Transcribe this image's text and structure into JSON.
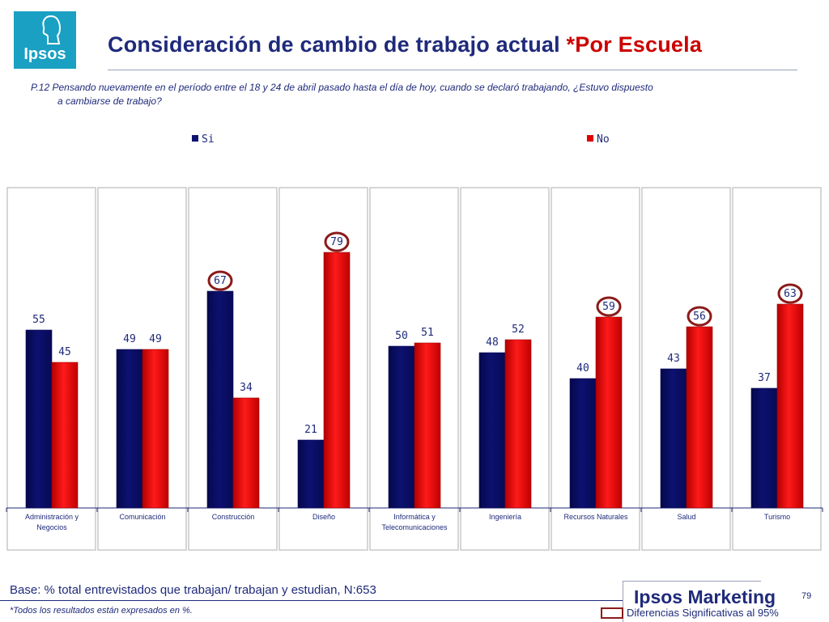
{
  "header": {
    "logo_text": "Ipsos",
    "title_main": "Consideración de cambio de trabajo actual ",
    "title_highlight": "*Por Escuela"
  },
  "question": {
    "line1": "P.12  Pensando nuevamente en el período entre el 18 y 24 de abril pasado hasta el día de hoy, cuando se declaró trabajando, ¿Estuvo dispuesto",
    "line2": "a cambiarse de trabajo?"
  },
  "colors": {
    "si": "#0d1170",
    "no": "#e00000",
    "circle": "#8b1a1a",
    "title_blue": "#1f2a7a"
  },
  "chart_data": {
    "type": "bar",
    "categories": [
      [
        "Administración y",
        "Negocios"
      ],
      [
        "Comunicación"
      ],
      [
        "Construcción"
      ],
      [
        "Diseño"
      ],
      [
        "Informática y",
        "Telecomunicaciones"
      ],
      [
        "Ingeniería"
      ],
      [
        "Recursos Naturales"
      ],
      [
        "Salud"
      ],
      [
        "Turismo"
      ]
    ],
    "series": [
      {
        "name": "Si",
        "values": [
          55,
          49,
          67,
          21,
          50,
          48,
          40,
          43,
          37
        ],
        "circled": [
          false,
          false,
          true,
          false,
          false,
          false,
          false,
          false,
          false
        ]
      },
      {
        "name": "No",
        "values": [
          45,
          49,
          34,
          79,
          51,
          52,
          59,
          56,
          63
        ],
        "circled": [
          false,
          false,
          false,
          true,
          false,
          false,
          true,
          true,
          true
        ]
      }
    ],
    "ylim": [
      0,
      100
    ],
    "legend_position": "top",
    "grid": false
  },
  "footer": {
    "base": "Base: % total entrevistados que trabajan/ trabajan y estudian, N:653",
    "note": "*Todos los resultados están expresados en %.",
    "brand": "Ipsos Marketing",
    "page_number": "79",
    "sig_legend": "Diferencias Significativas al 95%"
  }
}
